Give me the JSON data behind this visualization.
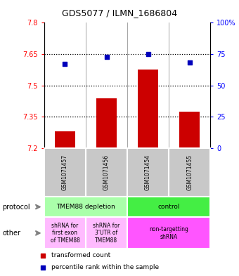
{
  "title": "GDS5077 / ILMN_1686804",
  "samples": [
    "GSM1071457",
    "GSM1071456",
    "GSM1071454",
    "GSM1071455"
  ],
  "bar_values": [
    7.28,
    7.44,
    7.575,
    7.375
  ],
  "bar_base": 7.2,
  "blue_percentile": [
    67,
    73,
    75,
    68
  ],
  "ylim_left": [
    7.2,
    7.8
  ],
  "ylim_right": [
    0,
    100
  ],
  "yticks_left": [
    7.2,
    7.35,
    7.5,
    7.65,
    7.8
  ],
  "yticks_right": [
    0,
    25,
    50,
    75,
    100
  ],
  "ytick_labels_right": [
    "0",
    "25",
    "50",
    "75",
    "100%"
  ],
  "bar_color": "#cc0000",
  "blue_color": "#0000bb",
  "sample_bg": "#c8c8c8",
  "protocol_data": [
    [
      0,
      2,
      "#aaffaa",
      "TMEM88 depletion"
    ],
    [
      2,
      4,
      "#44ee44",
      "control"
    ]
  ],
  "other_data": [
    [
      0,
      1,
      "#ffbbff",
      "shRNA for\nfirst exon\nof TMEM88"
    ],
    [
      1,
      2,
      "#ffbbff",
      "shRNA for\n3'UTR of\nTMEM88"
    ],
    [
      2,
      4,
      "#ff55ff",
      "non-targetting\nshRNA"
    ]
  ],
  "legend_red_label": "transformed count",
  "legend_blue_label": "percentile rank within the sample",
  "hlines": [
    7.35,
    7.5,
    7.65
  ]
}
